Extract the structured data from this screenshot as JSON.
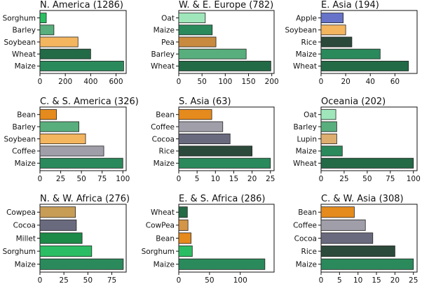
{
  "colors": {
    "Sorghum": "#2bbd63",
    "Barley": "#58ae7c",
    "Soybean": "#f4b55f",
    "Wheat": "#236a46",
    "Maize": "#2a8a5b",
    "Oat": "#9fe7bb",
    "Pea": "#c88a3e",
    "Apple": "#6673c9",
    "Rice": "#2c4a3b",
    "Bean": "#e58a1c",
    "Coffee": "#a09ea9",
    "Cocoa": "#6a6a7f",
    "Lupin": "#deae6e",
    "Cowpea": "#c79c55",
    "Millet": "#1d8a48",
    "CowPea": "#d49548"
  },
  "chart_data": [
    {
      "type": "bar",
      "orientation": "horizontal",
      "title": "N. America (1286)",
      "categories": [
        "Sorghum",
        "Barley",
        "Soybean",
        "Wheat",
        "Maize"
      ],
      "values": [
        50,
        110,
        300,
        400,
        660
      ],
      "xlim": [
        0,
        680
      ],
      "xticks": [
        0,
        200,
        400,
        600
      ]
    },
    {
      "type": "bar",
      "orientation": "horizontal",
      "title": "W. & E. Europe (782)",
      "categories": [
        "Oat",
        "Maize",
        "Pea",
        "Barley",
        "Wheat"
      ],
      "values": [
        57,
        72,
        80,
        145,
        198
      ],
      "xlim": [
        0,
        205
      ],
      "xticks": [
        0,
        50,
        100,
        150,
        200
      ]
    },
    {
      "type": "bar",
      "orientation": "horizontal",
      "title": "E. Asia (194)",
      "categories": [
        "Apple",
        "Soybean",
        "Rice",
        "Maize",
        "Wheat"
      ],
      "values": [
        18,
        20,
        25,
        48,
        71
      ],
      "xlim": [
        0,
        78
      ],
      "xticks": [
        0,
        20,
        40,
        60
      ]
    },
    {
      "type": "bar",
      "orientation": "horizontal",
      "title": "C. & S. America (326)",
      "categories": [
        "Bean",
        "Barley",
        "Soybean",
        "Coffee",
        "Maize"
      ],
      "values": [
        20,
        47,
        55,
        77,
        100
      ],
      "xlim": [
        0,
        104
      ],
      "xticks": [
        0,
        25,
        50,
        75,
        100
      ]
    },
    {
      "type": "bar",
      "orientation": "horizontal",
      "title": "S. Asia (63)",
      "categories": [
        "Bean",
        "Coffee",
        "Cocoa",
        "Rice",
        "Maize"
      ],
      "values": [
        9,
        12,
        14,
        20,
        25
      ],
      "xlim": [
        0,
        26
      ],
      "xticks": [
        0,
        5,
        10,
        15,
        20,
        25
      ]
    },
    {
      "type": "bar",
      "orientation": "horizontal",
      "title": "Oceania (202)",
      "categories": [
        "Oat",
        "Barley",
        "Lupin",
        "Maize",
        "Wheat"
      ],
      "values": [
        16,
        17,
        17,
        23,
        100
      ],
      "xlim": [
        0,
        104
      ],
      "xticks": [
        0,
        25,
        50,
        75,
        100
      ]
    },
    {
      "type": "bar",
      "orientation": "horizontal",
      "title": "N. & W. Africa (276)",
      "categories": [
        "Cowpea",
        "Cocoa",
        "Millet",
        "Sorghum",
        "Maize"
      ],
      "values": [
        37,
        38,
        44,
        54,
        87
      ],
      "xlim": [
        0,
        90
      ],
      "xticks": [
        0,
        25,
        50,
        75
      ]
    },
    {
      "type": "bar",
      "orientation": "horizontal",
      "title": "E. & S. Africa (286)",
      "categories": [
        "Wheat",
        "CowPea",
        "Bean",
        "Sorghum",
        "Maize"
      ],
      "values": [
        14,
        15,
        20,
        22,
        140
      ],
      "xlim": [
        0,
        155
      ],
      "xticks": [
        0,
        50,
        100
      ]
    },
    {
      "type": "bar",
      "orientation": "horizontal",
      "title": "C. & W. Asia (308)",
      "categories": [
        "Bean",
        "Coffee",
        "Cocoa",
        "Rice",
        "Maize"
      ],
      "values": [
        9,
        12,
        14,
        20,
        25
      ],
      "xlim": [
        0,
        26
      ],
      "xticks": [
        0,
        5,
        10,
        15,
        20,
        25
      ]
    }
  ]
}
